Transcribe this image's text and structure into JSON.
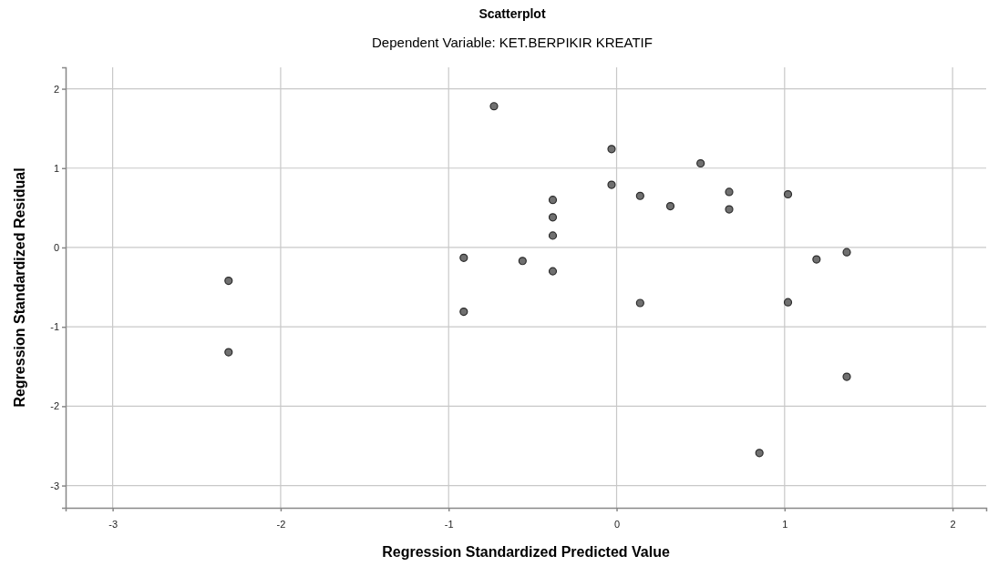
{
  "chart_data": {
    "type": "scatter",
    "title": "Scatterplot",
    "subtitle": "Dependent Variable: KET.BERPIKIR KREATIF",
    "xlabel": "Regression Standardized Predicted Value",
    "ylabel": "Regression Standardized Residual",
    "x": [
      -2.31,
      -2.31,
      -0.73,
      -0.91,
      -0.91,
      -0.56,
      -0.38,
      -0.38,
      -0.38,
      -0.38,
      -0.03,
      -0.03,
      0.14,
      0.14,
      0.32,
      0.5,
      0.67,
      0.67,
      1.02,
      1.02,
      1.19,
      1.37,
      1.37,
      0.85
    ],
    "values": [
      -0.42,
      -1.32,
      1.78,
      -0.13,
      -0.81,
      -0.17,
      0.6,
      0.38,
      0.15,
      -0.3,
      1.24,
      0.79,
      0.65,
      -0.7,
      0.52,
      1.06,
      0.7,
      0.48,
      0.67,
      -0.69,
      -0.15,
      -0.06,
      -1.63,
      -2.59
    ],
    "color": "#707070",
    "marker": "circle",
    "grid": true,
    "xlim": [
      -3.28,
      2.2
    ],
    "ylim": [
      -3.28,
      2.27
    ],
    "xticks": [
      -3,
      -2,
      -1,
      0,
      1,
      2
    ],
    "yticks": [
      -3,
      -2,
      -1,
      0,
      1,
      2
    ]
  }
}
